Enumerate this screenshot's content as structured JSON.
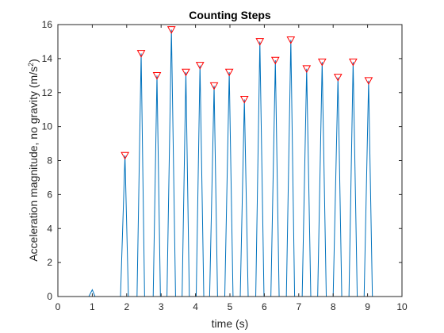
{
  "chart_data": {
    "type": "line",
    "title": "Counting Steps",
    "xlabel": "time (s)",
    "ylabel": "Acceleration magnitude, no gravity (m/s^2)",
    "ylabel_parts": {
      "main": "Acceleration magnitude, no gravity (m/s",
      "sup": "2",
      "end": ")"
    },
    "xlim": [
      0,
      10
    ],
    "ylim": [
      0,
      16
    ],
    "x_ticks": [
      0,
      1,
      2,
      3,
      4,
      5,
      6,
      7,
      8,
      9,
      10
    ],
    "y_ticks": [
      0,
      2,
      4,
      6,
      8,
      10,
      12,
      14,
      16
    ],
    "x_tick_labels": [
      "0",
      "1",
      "2",
      "3",
      "4",
      "5",
      "6",
      "7",
      "8",
      "9",
      "10"
    ],
    "y_tick_labels": [
      "0",
      "2",
      "4",
      "6",
      "8",
      "10",
      "12",
      "14",
      "16"
    ],
    "grid": false,
    "series": [
      {
        "type": "line",
        "color": "#0072BD",
        "x": [
          0,
          0.9,
          1.0,
          1.08,
          1.82,
          1.95,
          2.05,
          2.3,
          2.42,
          2.52,
          2.77,
          2.88,
          2.98,
          3.17,
          3.3,
          3.42,
          3.61,
          3.72,
          3.82,
          4.02,
          4.13,
          4.24,
          4.41,
          4.54,
          4.64,
          4.85,
          4.98,
          5.09,
          5.3,
          5.42,
          5.53,
          5.75,
          5.87,
          5.99,
          6.19,
          6.32,
          6.43,
          6.64,
          6.77,
          6.88,
          7.1,
          7.23,
          7.35,
          7.55,
          7.68,
          7.8,
          8.0,
          8.14,
          8.25,
          8.46,
          8.58,
          8.7,
          8.9,
          9.03,
          9.14,
          9.35,
          10
        ],
        "y": [
          0,
          0,
          0.4,
          0,
          0,
          8.3,
          0,
          0,
          14.3,
          0,
          0,
          13.0,
          0,
          0,
          15.7,
          0,
          0,
          13.2,
          0,
          0,
          13.6,
          0,
          0,
          12.4,
          0,
          0,
          13.2,
          0,
          0,
          11.6,
          0,
          0,
          15.0,
          0,
          0,
          13.9,
          0,
          0,
          15.1,
          0,
          0,
          13.4,
          0,
          0,
          13.8,
          0,
          0,
          12.9,
          0,
          0,
          13.8,
          0,
          0,
          12.7,
          0,
          0,
          0
        ]
      },
      {
        "type": "scatter",
        "marker": "triangle-down",
        "color": "#FF0000",
        "x": [
          1.95,
          2.42,
          2.88,
          3.3,
          3.72,
          4.13,
          4.54,
          4.98,
          5.42,
          5.87,
          6.32,
          6.77,
          7.23,
          7.68,
          8.14,
          8.58,
          9.03
        ],
        "y": [
          8.3,
          14.3,
          13.0,
          15.7,
          13.2,
          13.6,
          12.4,
          13.2,
          11.6,
          15.0,
          13.9,
          15.1,
          13.4,
          13.8,
          12.9,
          13.8,
          12.7
        ]
      }
    ]
  }
}
